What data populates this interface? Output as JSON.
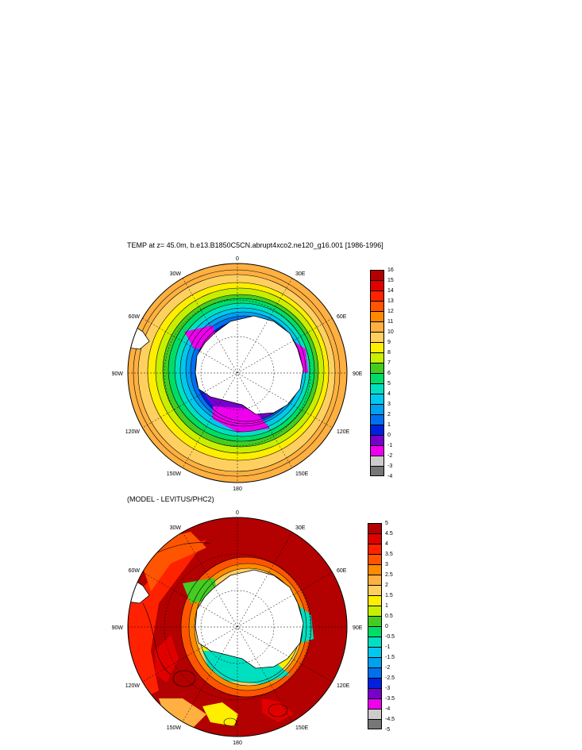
{
  "top_panel": {
    "title": "TEMP at z=  45.0m, b.e13.B1850C5CN.abrupt4xco2.ne120_g16.001 [1986-1996]",
    "lon_labels": [
      "0",
      "30E",
      "60E",
      "90E",
      "120E",
      "150E",
      "180",
      "150W",
      "120W",
      "90W",
      "60W",
      "30W"
    ],
    "colorbar": {
      "labels": [
        "16",
        "15",
        "14",
        "13",
        "12",
        "11",
        "10",
        "9",
        "8",
        "7",
        "6",
        "5",
        "4",
        "3",
        "2",
        "1",
        "0",
        "-1",
        "-2",
        "-3",
        "-4"
      ],
      "colors": [
        "#b30000",
        "#e00000",
        "#ff2200",
        "#ff5500",
        "#ff8a00",
        "#ffb040",
        "#ffd060",
        "#ffee00",
        "#c8ee00",
        "#44cc22",
        "#00dd66",
        "#00e0c0",
        "#00c8ee",
        "#00a0f0",
        "#0070f0",
        "#0020e0",
        "#7700cc",
        "#ee00ee",
        "#cccccc",
        "#777777"
      ]
    }
  },
  "bottom_panel": {
    "title": "(MODEL - LEVITUS/PHC2)",
    "lon_labels": [
      "0",
      "30E",
      "60E",
      "90E",
      "120E",
      "150E",
      "180",
      "150W",
      "120W",
      "90W",
      "60W",
      "30W"
    ],
    "colorbar": {
      "labels": [
        "5",
        "4.5",
        "4",
        "3.5",
        "3",
        "2.5",
        "2",
        "1.5",
        "1",
        "0.5",
        "0",
        "-0.5",
        "-1",
        "-1.5",
        "-2",
        "-2.5",
        "-3",
        "-3.5",
        "-4",
        "-4.5",
        "-5"
      ],
      "colors": [
        "#b30000",
        "#e00000",
        "#ff2200",
        "#ff5500",
        "#ff8a00",
        "#ffb040",
        "#ffd060",
        "#ffee00",
        "#c8ee00",
        "#44cc22",
        "#00dd66",
        "#00e0c0",
        "#00c8ee",
        "#00a0f0",
        "#0070f0",
        "#0020e0",
        "#7700cc",
        "#ee00ee",
        "#cccccc",
        "#777777"
      ]
    }
  }
}
